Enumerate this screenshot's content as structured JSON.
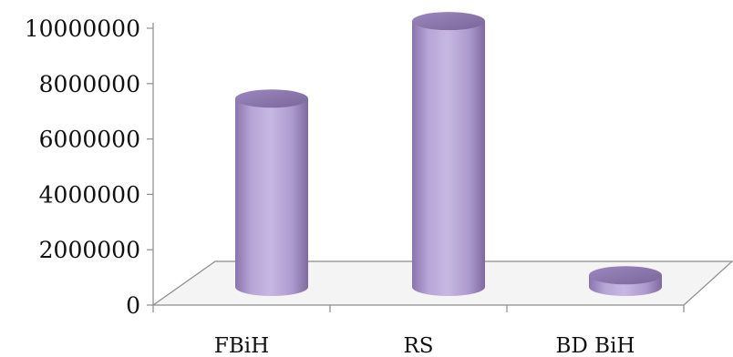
{
  "chart_data": {
    "type": "bar",
    "style": "3d-cylinder",
    "title": "",
    "xlabel": "",
    "ylabel": "",
    "categories": [
      "FBiH",
      "RS",
      "BD BiH"
    ],
    "values": [
      6800000,
      9600000,
      420000
    ],
    "ylim": [
      0,
      10000000
    ],
    "yticks": [
      0,
      2000000,
      4000000,
      6000000,
      8000000,
      10000000
    ],
    "ytick_labels": [
      "0",
      "2000000",
      "4000000",
      "6000000",
      "8000000",
      "10000000"
    ],
    "grid": false,
    "legend": "none",
    "bar_color": "#b8a6d6"
  }
}
